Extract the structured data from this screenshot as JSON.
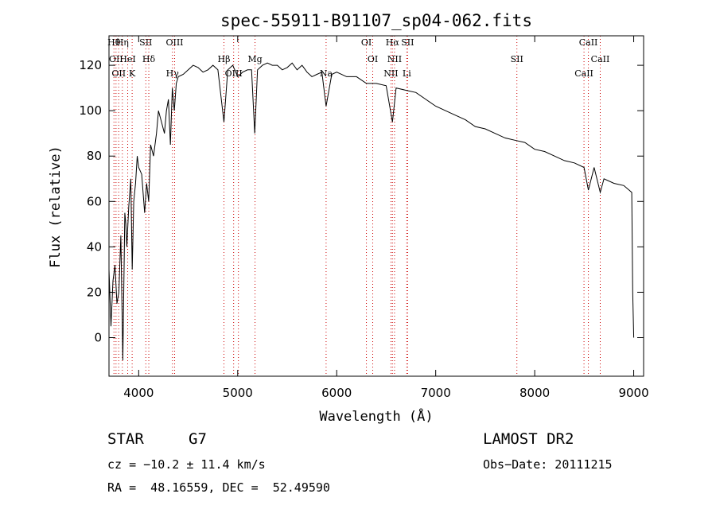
{
  "chart_data": {
    "type": "line",
    "title": "spec-55911-B91107_sp04-062.fits",
    "xlabel": "Wavelength (Å)",
    "ylabel": "Flux (relative)",
    "xlim": [
      3700,
      9100
    ],
    "ylim": [
      -17,
      133
    ],
    "xticks": [
      4000,
      5000,
      6000,
      7000,
      8000,
      9000
    ],
    "yticks": [
      0,
      20,
      40,
      60,
      80,
      100,
      120
    ],
    "line_color": "#000000",
    "marker_color": "#cc0000",
    "series": [
      {
        "x": [
          3700,
          3720,
          3740,
          3760,
          3780,
          3800,
          3820,
          3840,
          3860,
          3870,
          3880,
          3900,
          3920,
          3935,
          3950,
          3968,
          3985,
          4000,
          4030,
          4060,
          4080,
          4101,
          4120,
          4150,
          4180,
          4200,
          4230,
          4260,
          4280,
          4300,
          4320,
          4340,
          4360,
          4380,
          4400,
          4450,
          4500,
          4550,
          4600,
          4650,
          4700,
          4750,
          4800,
          4861,
          4900,
          4950,
          5000,
          5050,
          5100,
          5140,
          5172,
          5200,
          5250,
          5300,
          5350,
          5400,
          5450,
          5500,
          5550,
          5600,
          5650,
          5700,
          5750,
          5800,
          5850,
          5893,
          5950,
          6000,
          6100,
          6200,
          6300,
          6400,
          6500,
          6563,
          6600,
          6700,
          6800,
          6900,
          7000,
          7100,
          7200,
          7300,
          7400,
          7500,
          7600,
          7700,
          7800,
          7900,
          8000,
          8100,
          8200,
          8300,
          8400,
          8498,
          8542,
          8600,
          8662,
          8700,
          8800,
          8900,
          8980,
          8990,
          9000
        ],
        "y": [
          30,
          5,
          25,
          32,
          15,
          20,
          45,
          -10,
          55,
          50,
          40,
          58,
          70,
          30,
          60,
          68,
          80,
          75,
          72,
          55,
          68,
          60,
          85,
          80,
          90,
          100,
          95,
          90,
          100,
          105,
          85,
          110,
          100,
          112,
          115,
          116,
          118,
          120,
          119,
          117,
          118,
          120,
          118,
          95,
          118,
          120,
          115,
          117,
          118,
          118,
          90,
          118,
          120,
          121,
          120,
          120,
          118,
          119,
          121,
          118,
          120,
          117,
          115,
          116,
          117,
          102,
          116,
          117,
          115,
          115,
          112,
          112,
          111,
          95,
          110,
          109,
          108,
          105,
          102,
          100,
          98,
          96,
          93,
          92,
          90,
          88,
          87,
          86,
          83,
          82,
          80,
          78,
          77,
          75,
          65,
          75,
          64,
          70,
          68,
          67,
          64,
          20,
          0
        ]
      }
    ],
    "lines": [
      {
        "x": 3750,
        "label": "Hθ"
      },
      {
        "x": 3771,
        "label": "OII"
      },
      {
        "x": 3798,
        "label": "OII"
      },
      {
        "x": 3835,
        "label": "Hη"
      },
      {
        "x": 3889,
        "label": "HeI"
      },
      {
        "x": 3934,
        "label": "K"
      },
      {
        "x": 4072,
        "label": "SII"
      },
      {
        "x": 4102,
        "label": "Hδ"
      },
      {
        "x": 4341,
        "label": "Hγ"
      },
      {
        "x": 4363,
        "label": "OIII"
      },
      {
        "x": 4861,
        "label": "Hβ"
      },
      {
        "x": 4959,
        "label": "OIII"
      },
      {
        "x": 5007,
        "label": ""
      },
      {
        "x": 5175,
        "label": "Mg"
      },
      {
        "x": 5893,
        "label": "Na"
      },
      {
        "x": 6300,
        "label": "OI"
      },
      {
        "x": 6364,
        "label": "OI"
      },
      {
        "x": 6548,
        "label": "NII"
      },
      {
        "x": 6563,
        "label": "Hα"
      },
      {
        "x": 6584,
        "label": "NII"
      },
      {
        "x": 6708,
        "label": "Li"
      },
      {
        "x": 6716,
        "label": "SII"
      },
      {
        "x": 7820,
        "label": "SII"
      },
      {
        "x": 8498,
        "label": "CaII"
      },
      {
        "x": 8542,
        "label": "CaII"
      },
      {
        "x": 8662,
        "label": "CaII"
      }
    ]
  },
  "info": {
    "object_class": "STAR",
    "subclass": "G7",
    "survey": "LAMOST DR2",
    "cz": "cz = −10.2 ± 11.4 km/s",
    "obs_date": "Obs−Date: 20111215",
    "coords": "RA =  48.16559, DEC =  52.49590"
  }
}
